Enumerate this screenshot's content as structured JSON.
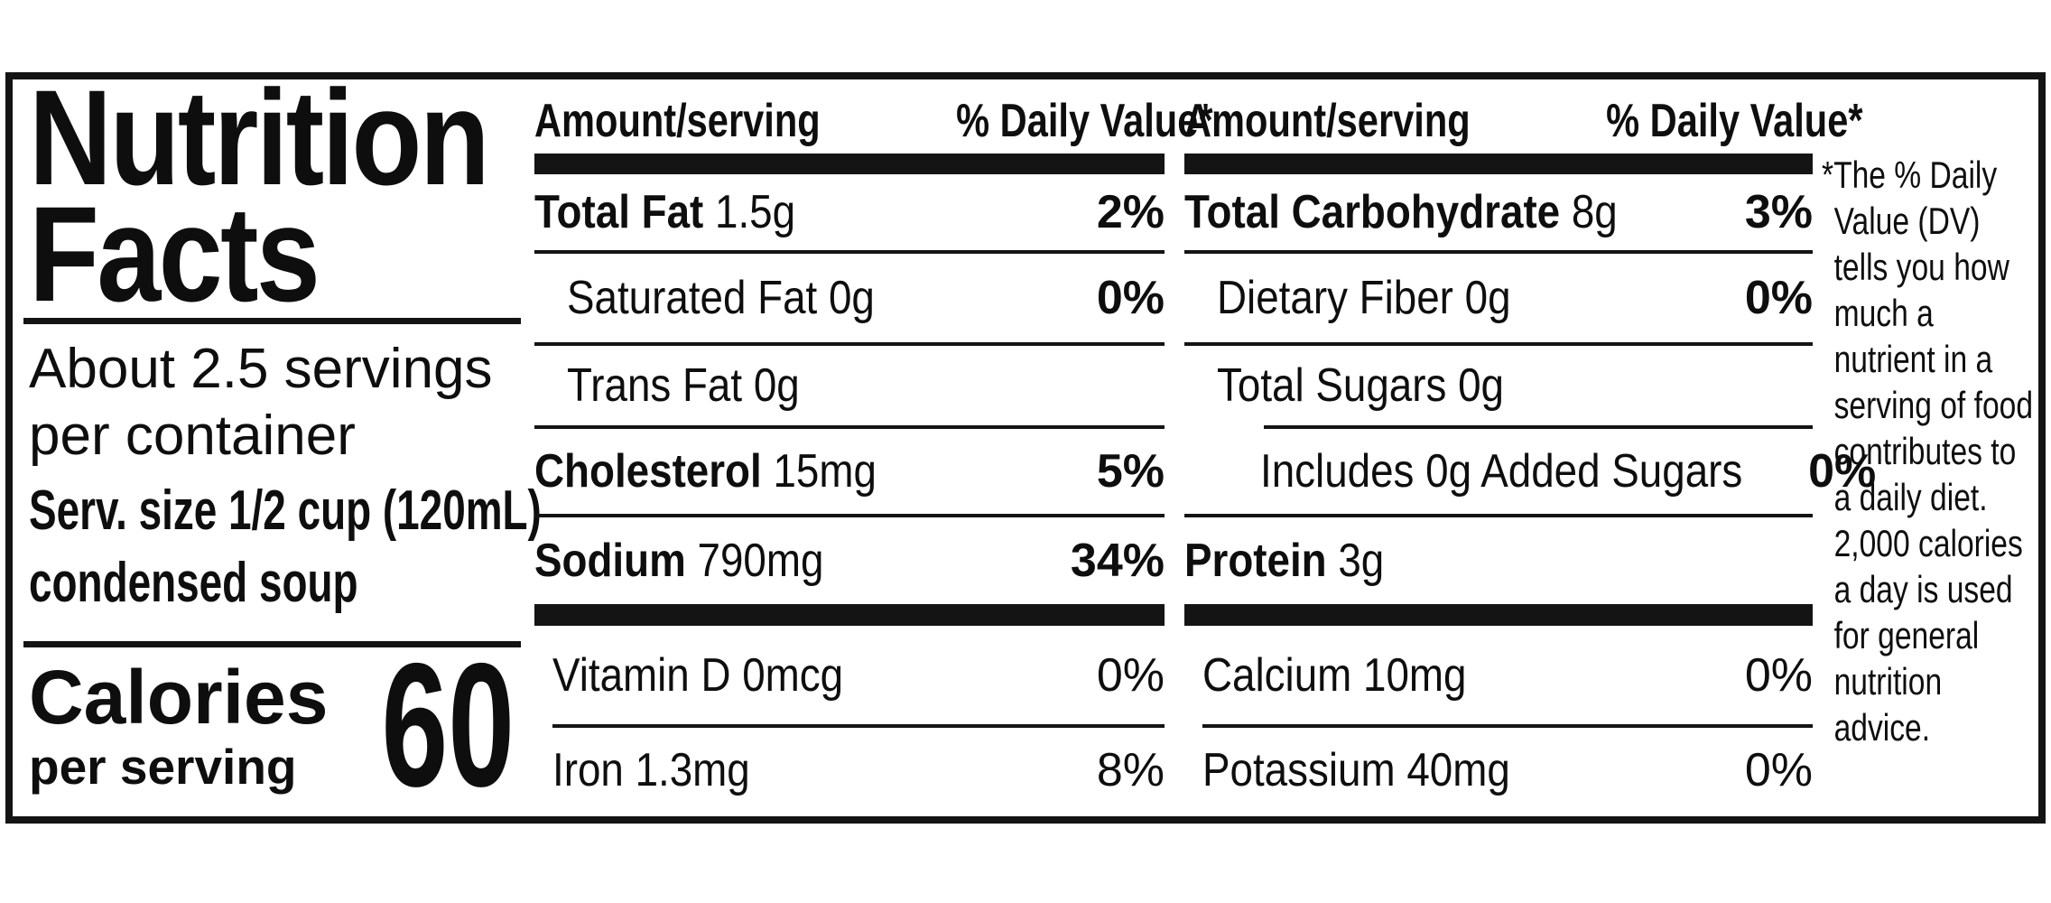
{
  "colors": {
    "ink": "#141414",
    "background": "#ffffff"
  },
  "label": {
    "title_line1": "Nutrition",
    "title_line2": "Facts",
    "servings_line1": "About 2.5 servings",
    "servings_line2": "per container",
    "serving_size_line1": "Serv. size 1/2 cup (120mL)",
    "serving_size_line2": "condensed soup",
    "calories_word": "Calories",
    "calories_sub": "per serving",
    "calories_value": "60"
  },
  "mid": {
    "header_amount": "Amount/serving",
    "header_dv": "% Daily Value*",
    "rows": [
      {
        "name": "Total Fat",
        "rest": " 1.5g",
        "pct": "2%"
      },
      {
        "name": "",
        "rest": "Saturated Fat 0g",
        "pct": "0%"
      },
      {
        "name": "",
        "rest": "Trans Fat 0g",
        "pct": ""
      },
      {
        "name": "Cholesterol",
        "rest": " 15mg",
        "pct": "5%"
      },
      {
        "name": "Sodium",
        "rest": " 790mg",
        "pct": "34%"
      },
      {
        "name": "",
        "rest": "Vitamin D 0mcg",
        "pct": "0%"
      },
      {
        "name": "",
        "rest": "Iron 1.3mg",
        "pct": "8%"
      }
    ]
  },
  "right": {
    "header_amount": "Amount/serving",
    "header_dv": "% Daily Value*",
    "rows": [
      {
        "name": "Total Carbohydrate",
        "rest": " 8g",
        "pct": "3%"
      },
      {
        "name": "",
        "rest": "Dietary Fiber 0g",
        "pct": "0%"
      },
      {
        "name": "",
        "rest": "Total Sugars 0g",
        "pct": ""
      },
      {
        "name": "",
        "rest": "Includes 0g Added Sugars",
        "pct": "0%"
      },
      {
        "name": "Protein",
        "rest": " 3g",
        "pct": ""
      },
      {
        "name": "",
        "rest": "Calcium 10mg",
        "pct": "0%"
      },
      {
        "name": "",
        "rest": "Potassium 40mg",
        "pct": "0%"
      }
    ]
  },
  "footnote": {
    "lines": [
      "*The % Daily",
      "Value (DV)",
      "tells you how",
      "much a",
      "nutrient in a",
      "serving of food",
      "contributes to",
      "a daily diet.",
      "2,000 calories",
      "a day is used",
      "for general",
      "nutrition",
      "advice."
    ]
  }
}
